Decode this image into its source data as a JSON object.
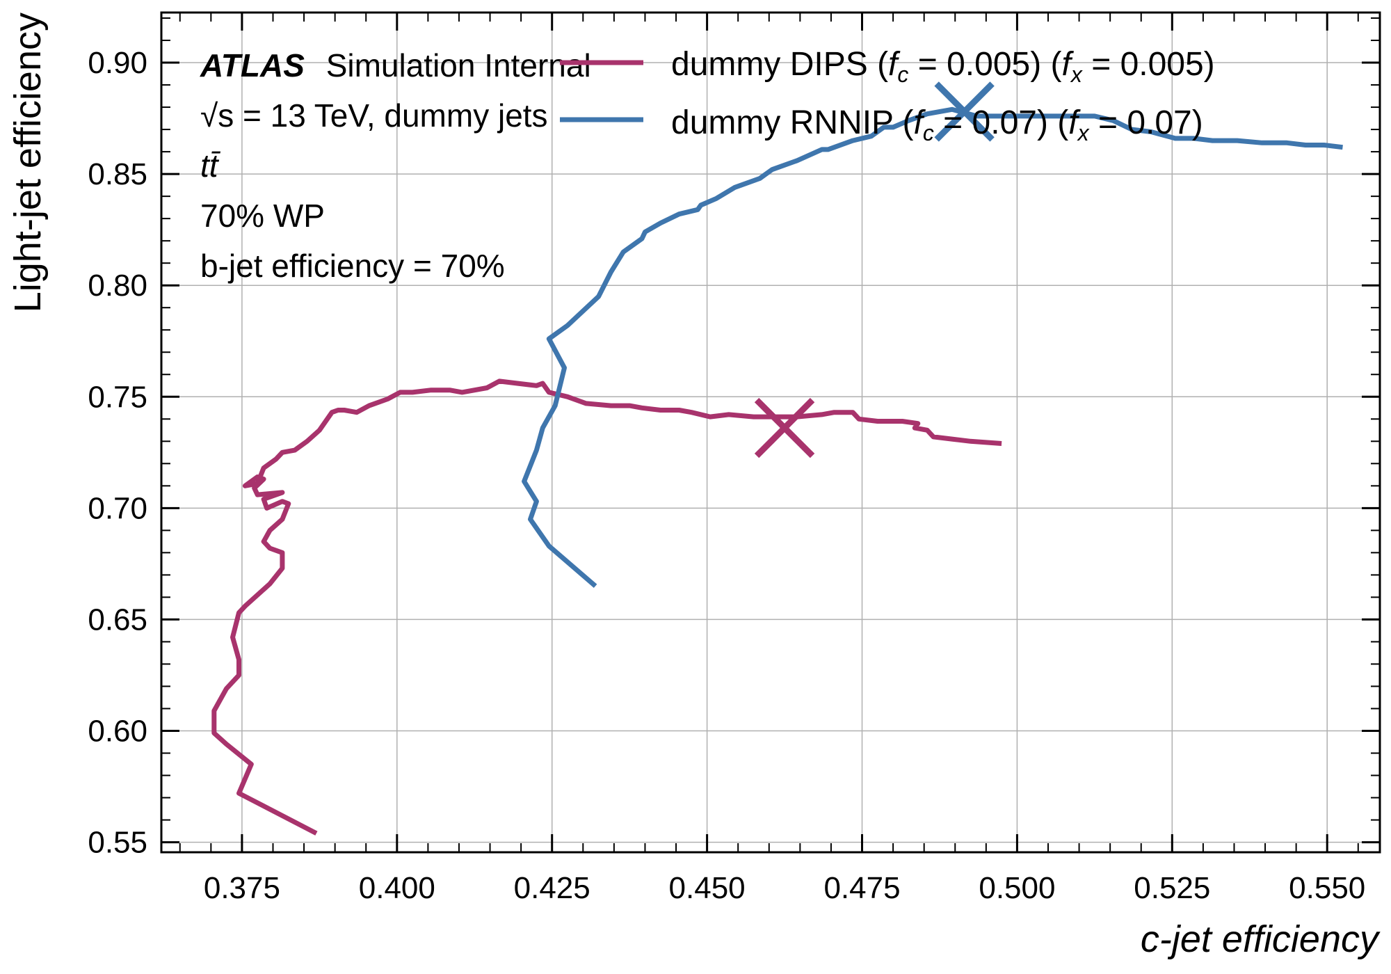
{
  "chart_data": {
    "type": "line",
    "xlabel": "c-jet efficiency",
    "ylabel": "Light-jet efficiency",
    "xlim": [
      0.362,
      0.5585
    ],
    "ylim": [
      0.5455,
      0.9225
    ],
    "xticks": [
      "0.375",
      "0.400",
      "0.425",
      "0.450",
      "0.475",
      "0.500",
      "0.525",
      "0.550"
    ],
    "yticks": [
      "0.55",
      "0.60",
      "0.65",
      "0.70",
      "0.75",
      "0.80",
      "0.85",
      "0.90"
    ],
    "grid": true,
    "legend_position": "top-right",
    "annotations": {
      "experiment": "ATLAS",
      "status": "Simulation Internal",
      "energy": "√s = 13 TeV, dummy jets",
      "process": "tt̄",
      "wp": "70% WP",
      "beff": "b-jet efficiency = 70%"
    },
    "series": [
      {
        "name": "dummy DIPS (f_c = 0.005) (f_x = 0.005)",
        "label_main": "dummy DIPS (",
        "label_f1": "f",
        "label_s1": "c",
        "label_eq1": " = 0.005) (",
        "label_f2": "f",
        "label_s2": "x",
        "label_eq2": " = 0.005)",
        "color": "#a8336c",
        "marker": {
          "x": 0.4625,
          "y": 0.736
        },
        "points": [
          [
            0.387,
            0.554
          ],
          [
            0.3745,
            0.572
          ],
          [
            0.3765,
            0.585
          ],
          [
            0.3725,
            0.594
          ],
          [
            0.3705,
            0.599
          ],
          [
            0.3705,
            0.609
          ],
          [
            0.3725,
            0.619
          ],
          [
            0.3745,
            0.625
          ],
          [
            0.3745,
            0.632
          ],
          [
            0.3735,
            0.642
          ],
          [
            0.3745,
            0.653
          ],
          [
            0.3755,
            0.656
          ],
          [
            0.3795,
            0.666
          ],
          [
            0.3815,
            0.673
          ],
          [
            0.3815,
            0.68
          ],
          [
            0.3795,
            0.682
          ],
          [
            0.3785,
            0.685
          ],
          [
            0.3795,
            0.69
          ],
          [
            0.3815,
            0.695
          ],
          [
            0.3825,
            0.702
          ],
          [
            0.3815,
            0.703
          ],
          [
            0.379,
            0.7
          ],
          [
            0.3785,
            0.704
          ],
          [
            0.3815,
            0.707
          ],
          [
            0.3775,
            0.706
          ],
          [
            0.377,
            0.709
          ],
          [
            0.3785,
            0.713
          ],
          [
            0.3775,
            0.714
          ],
          [
            0.3755,
            0.71
          ],
          [
            0.3775,
            0.711
          ],
          [
            0.3785,
            0.718
          ],
          [
            0.3805,
            0.722
          ],
          [
            0.3815,
            0.725
          ],
          [
            0.3835,
            0.726
          ],
          [
            0.3855,
            0.73
          ],
          [
            0.3875,
            0.735
          ],
          [
            0.3895,
            0.743
          ],
          [
            0.3905,
            0.744
          ],
          [
            0.3915,
            0.744
          ],
          [
            0.3935,
            0.743
          ],
          [
            0.3955,
            0.746
          ],
          [
            0.3985,
            0.749
          ],
          [
            0.4005,
            0.752
          ],
          [
            0.4025,
            0.752
          ],
          [
            0.4055,
            0.753
          ],
          [
            0.4085,
            0.753
          ],
          [
            0.4105,
            0.752
          ],
          [
            0.4145,
            0.754
          ],
          [
            0.4165,
            0.757
          ],
          [
            0.4195,
            0.756
          ],
          [
            0.4225,
            0.755
          ],
          [
            0.4235,
            0.756
          ],
          [
            0.4245,
            0.752
          ],
          [
            0.4275,
            0.75
          ],
          [
            0.4305,
            0.747
          ],
          [
            0.4345,
            0.746
          ],
          [
            0.4375,
            0.746
          ],
          [
            0.4395,
            0.745
          ],
          [
            0.4425,
            0.744
          ],
          [
            0.4455,
            0.744
          ],
          [
            0.4475,
            0.743
          ],
          [
            0.4505,
            0.741
          ],
          [
            0.4535,
            0.742
          ],
          [
            0.4575,
            0.741
          ],
          [
            0.4605,
            0.741
          ],
          [
            0.4645,
            0.741
          ],
          [
            0.4685,
            0.742
          ],
          [
            0.4705,
            0.743
          ],
          [
            0.4735,
            0.743
          ],
          [
            0.4745,
            0.74
          ],
          [
            0.4775,
            0.739
          ],
          [
            0.4815,
            0.739
          ],
          [
            0.484,
            0.738
          ],
          [
            0.4835,
            0.736
          ],
          [
            0.4855,
            0.735
          ],
          [
            0.4865,
            0.732
          ],
          [
            0.4895,
            0.731
          ],
          [
            0.4925,
            0.73
          ],
          [
            0.4975,
            0.729
          ]
        ]
      },
      {
        "name": "dummy RNNIP (f_c = 0.07) (f_x = 0.07)",
        "label_main": "dummy RNNIP (",
        "label_f1": "f",
        "label_s1": "c",
        "label_eq1": " = 0.07) (",
        "label_f2": "f",
        "label_s2": "x",
        "label_eq2": " = 0.07)",
        "color": "#3f76ad",
        "marker": {
          "x": 0.4915,
          "y": 0.878
        },
        "points": [
          [
            0.432,
            0.665
          ],
          [
            0.4245,
            0.683
          ],
          [
            0.4215,
            0.695
          ],
          [
            0.4225,
            0.703
          ],
          [
            0.4205,
            0.712
          ],
          [
            0.4225,
            0.726
          ],
          [
            0.4235,
            0.736
          ],
          [
            0.4255,
            0.746
          ],
          [
            0.427,
            0.763
          ],
          [
            0.4245,
            0.776
          ],
          [
            0.4275,
            0.782
          ],
          [
            0.4325,
            0.795
          ],
          [
            0.4345,
            0.806
          ],
          [
            0.4365,
            0.815
          ],
          [
            0.4395,
            0.821
          ],
          [
            0.44,
            0.824
          ],
          [
            0.4425,
            0.828
          ],
          [
            0.4455,
            0.832
          ],
          [
            0.4485,
            0.834
          ],
          [
            0.449,
            0.836
          ],
          [
            0.4515,
            0.839
          ],
          [
            0.4545,
            0.844
          ],
          [
            0.4585,
            0.848
          ],
          [
            0.4605,
            0.852
          ],
          [
            0.4645,
            0.856
          ],
          [
            0.4685,
            0.861
          ],
          [
            0.4695,
            0.861
          ],
          [
            0.4735,
            0.865
          ],
          [
            0.4765,
            0.867
          ],
          [
            0.4785,
            0.871
          ],
          [
            0.48,
            0.871
          ],
          [
            0.4825,
            0.874
          ],
          [
            0.4855,
            0.877
          ],
          [
            0.4895,
            0.879
          ],
          [
            0.4935,
            0.876
          ],
          [
            0.4975,
            0.876
          ],
          [
            0.5025,
            0.876
          ],
          [
            0.5075,
            0.876
          ],
          [
            0.5125,
            0.876
          ],
          [
            0.5155,
            0.874
          ],
          [
            0.5185,
            0.87
          ],
          [
            0.5215,
            0.869
          ],
          [
            0.5255,
            0.866
          ],
          [
            0.5285,
            0.866
          ],
          [
            0.5315,
            0.865
          ],
          [
            0.5355,
            0.865
          ],
          [
            0.5395,
            0.864
          ],
          [
            0.5435,
            0.864
          ],
          [
            0.5465,
            0.863
          ],
          [
            0.5495,
            0.863
          ],
          [
            0.5525,
            0.862
          ]
        ]
      }
    ]
  }
}
